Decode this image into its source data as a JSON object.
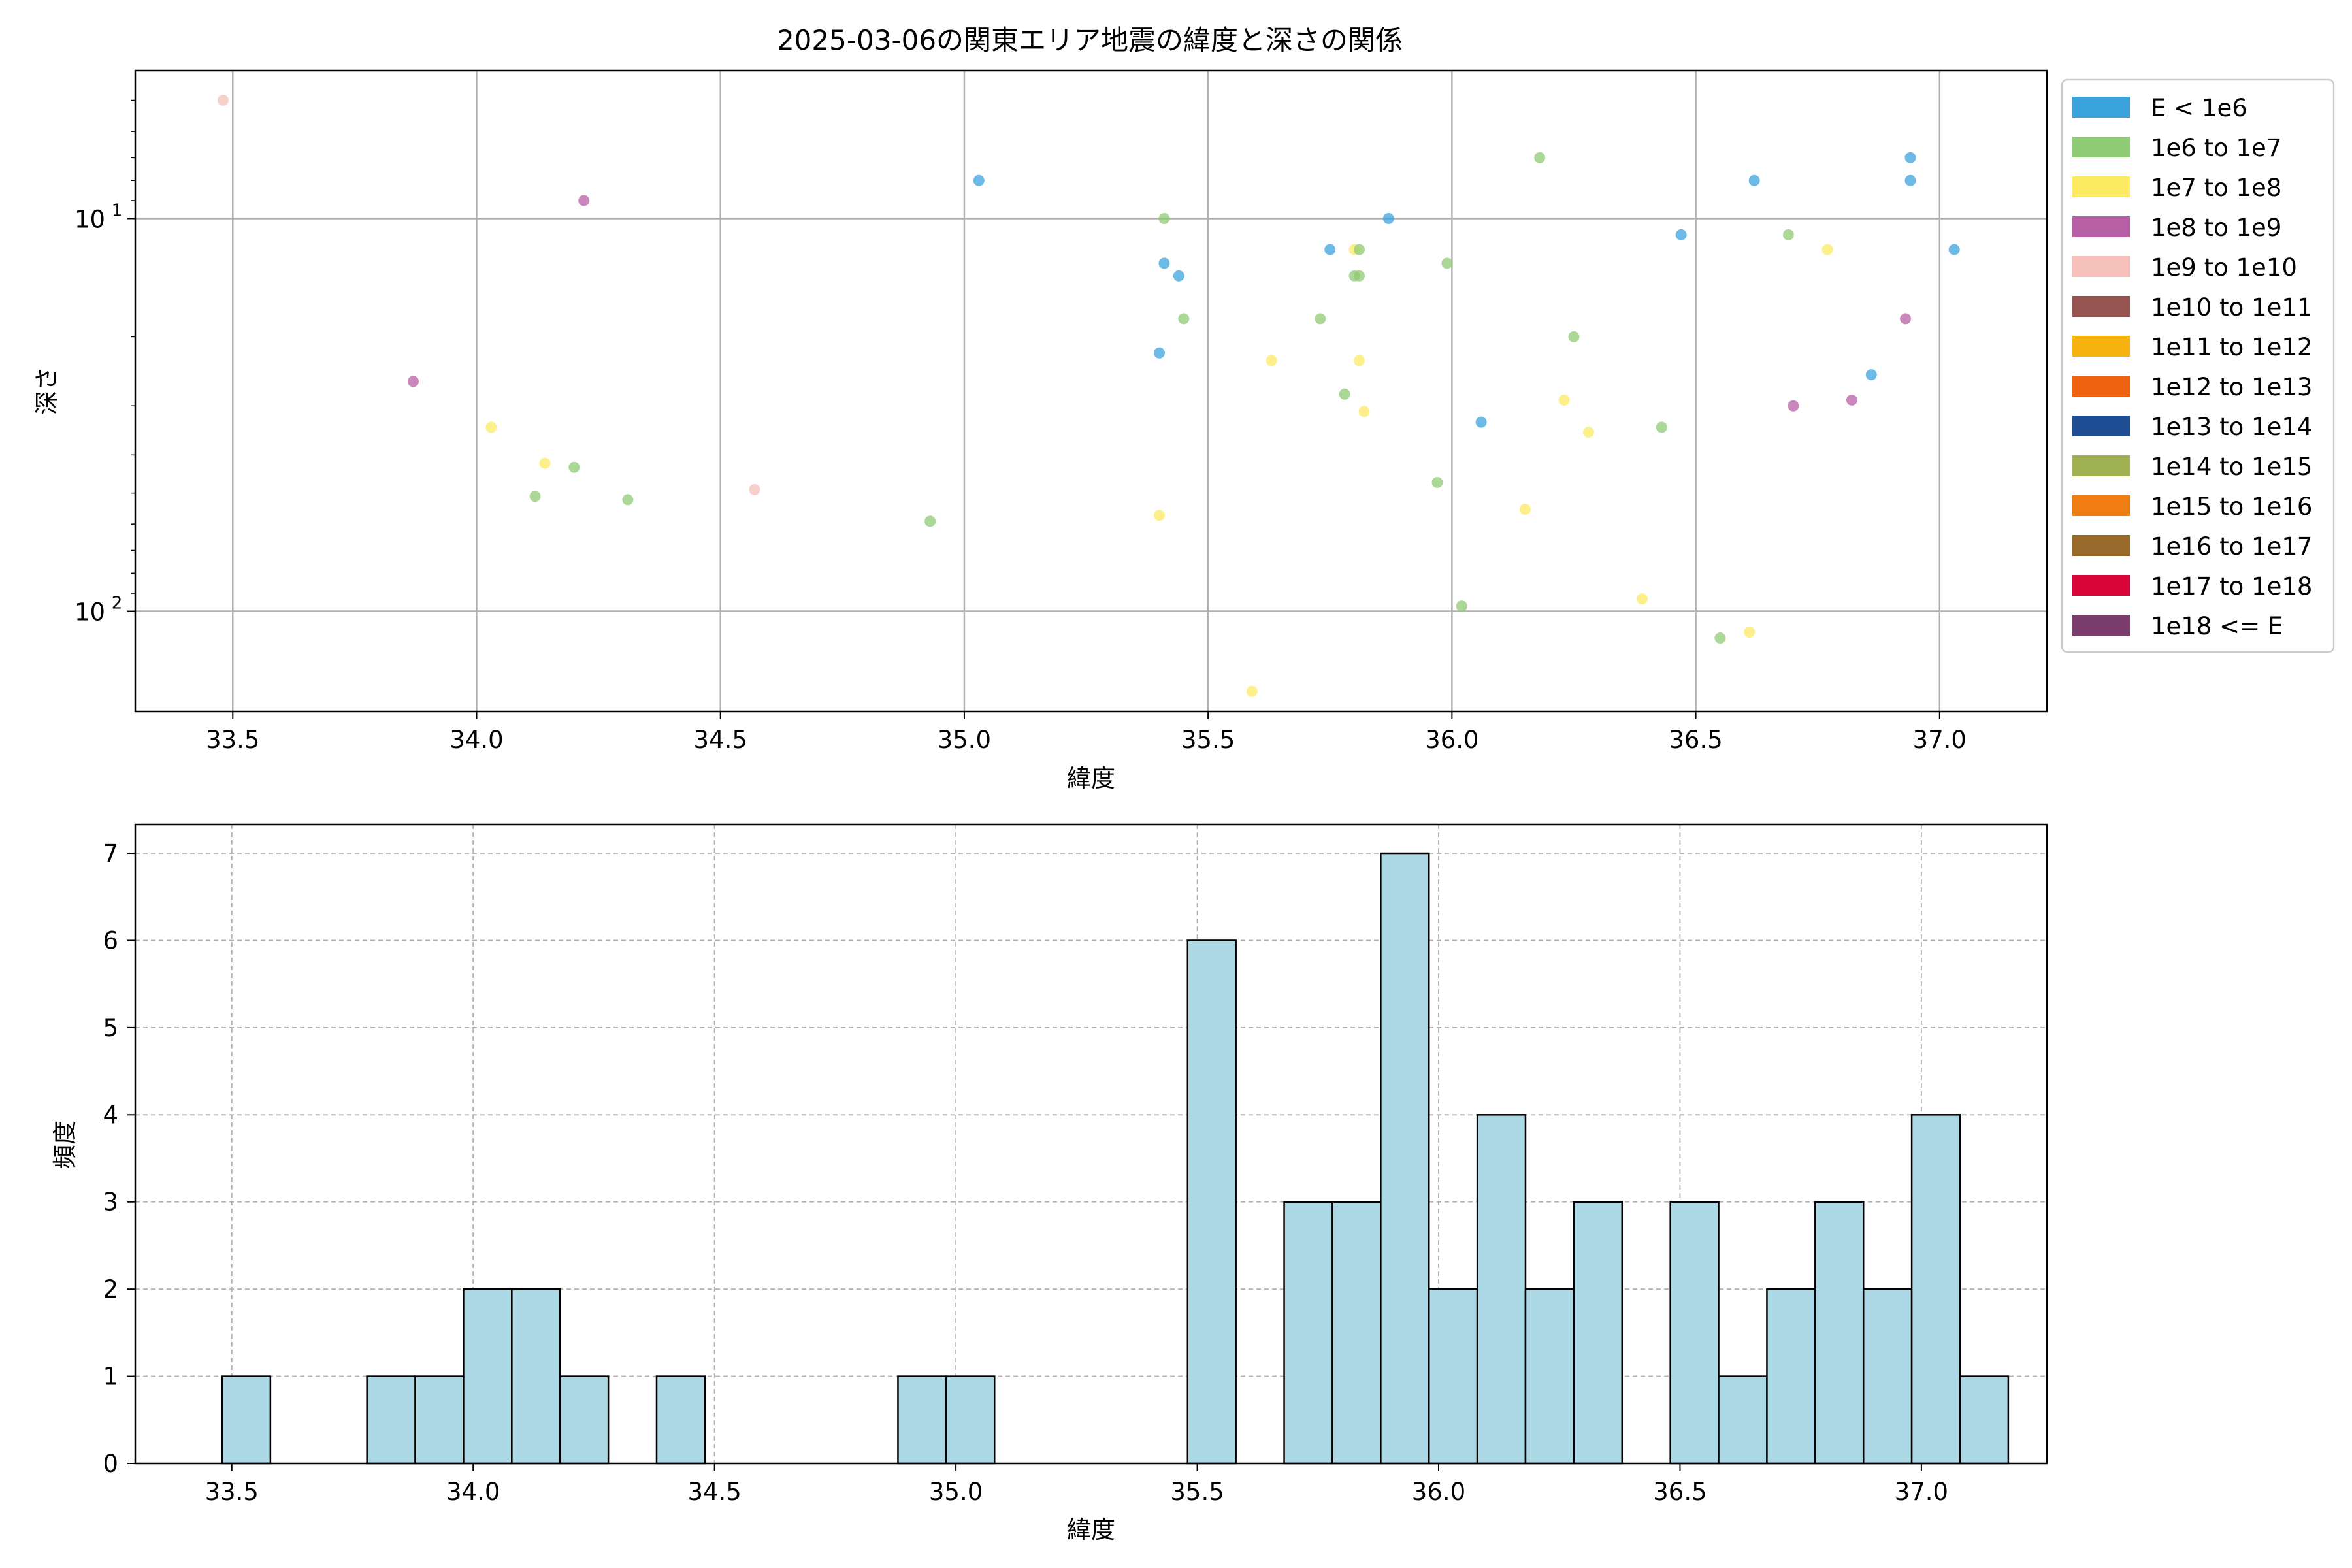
{
  "chart_data": [
    {
      "type": "scatter",
      "title": "2025-03-06の関東エリア地震の緯度と深さの関係",
      "xlabel": "緯度",
      "ylabel": "深さ",
      "xlim": [
        33.3,
        37.22
      ],
      "ylim": [
        180,
        4.2
      ],
      "y_scale": "log",
      "y_inverted": true,
      "grid": true,
      "legend_position": "outside-right",
      "xticks": [
        "33.5",
        "34.0",
        "34.5",
        "35.0",
        "35.5",
        "36.0",
        "36.5",
        "37.0"
      ],
      "yticks": [
        {
          "value": 10,
          "base": "10",
          "exp": "1"
        },
        {
          "value": 100,
          "base": "10",
          "exp": "2"
        }
      ],
      "legend": [
        {
          "label": "E < 1e6",
          "color": "#3ba3dc"
        },
        {
          "label": "1e6 to 1e7",
          "color": "#8fca74"
        },
        {
          "label": "1e7 to 1e8",
          "color": "#fcea62"
        },
        {
          "label": "1e8 to 1e9",
          "color": "#b75fa5"
        },
        {
          "label": "1e9 to 1e10",
          "color": "#f6c0ba"
        },
        {
          "label": "1e10 to 1e11",
          "color": "#955450"
        },
        {
          "label": "1e11 to 1e12",
          "color": "#f7b20f"
        },
        {
          "label": "1e12 to 1e13",
          "color": "#ee6210"
        },
        {
          "label": "1e13 to 1e14",
          "color": "#1e4d93"
        },
        {
          "label": "1e14 to 1e15",
          "color": "#9fb053"
        },
        {
          "label": "1e15 to 1e16",
          "color": "#f07d12"
        },
        {
          "label": "1e16 to 1e17",
          "color": "#986a2c"
        },
        {
          "label": "1e17 to 1e18",
          "color": "#da0639"
        },
        {
          "label": "1e18 <= E",
          "color": "#7a3c6c"
        }
      ],
      "points": [
        {
          "x": 33.48,
          "y": 5,
          "color": "#f6c0ba"
        },
        {
          "x": 34.22,
          "y": 9,
          "color": "#b75fa5"
        },
        {
          "x": 33.87,
          "y": 26,
          "color": "#b75fa5"
        },
        {
          "x": 34.03,
          "y": 34,
          "color": "#fcea62"
        },
        {
          "x": 34.14,
          "y": 42,
          "color": "#fcea62"
        },
        {
          "x": 34.2,
          "y": 43,
          "color": "#8fca74"
        },
        {
          "x": 34.12,
          "y": 51,
          "color": "#8fca74"
        },
        {
          "x": 34.31,
          "y": 52,
          "color": "#8fca74"
        },
        {
          "x": 34.57,
          "y": 49,
          "color": "#f6c0ba"
        },
        {
          "x": 34.93,
          "y": 59,
          "color": "#8fca74"
        },
        {
          "x": 35.03,
          "y": 8,
          "color": "#3ba3dc"
        },
        {
          "x": 35.41,
          "y": 10,
          "color": "#8fca74"
        },
        {
          "x": 35.41,
          "y": 13,
          "color": "#3ba3dc"
        },
        {
          "x": 35.44,
          "y": 14,
          "color": "#3ba3dc"
        },
        {
          "x": 35.45,
          "y": 18,
          "color": "#8fca74"
        },
        {
          "x": 35.4,
          "y": 22,
          "color": "#3ba3dc"
        },
        {
          "x": 35.4,
          "y": 57,
          "color": "#fcea62"
        },
        {
          "x": 35.59,
          "y": 160,
          "color": "#fcea62"
        },
        {
          "x": 35.63,
          "y": 23,
          "color": "#fcea62"
        },
        {
          "x": 35.73,
          "y": 18,
          "color": "#8fca74"
        },
        {
          "x": 35.75,
          "y": 12,
          "color": "#3ba3dc"
        },
        {
          "x": 35.78,
          "y": 28,
          "color": "#8fca74"
        },
        {
          "x": 35.8,
          "y": 12,
          "color": "#fcea62"
        },
        {
          "x": 35.81,
          "y": 12,
          "color": "#8fca74"
        },
        {
          "x": 35.8,
          "y": 14,
          "color": "#8fca74"
        },
        {
          "x": 35.81,
          "y": 14,
          "color": "#8fca74"
        },
        {
          "x": 35.81,
          "y": 23,
          "color": "#fcea62"
        },
        {
          "x": 35.82,
          "y": 31,
          "color": "#fcea62"
        },
        {
          "x": 35.87,
          "y": 10,
          "color": "#3ba3dc"
        },
        {
          "x": 35.97,
          "y": 47,
          "color": "#8fca74"
        },
        {
          "x": 35.99,
          "y": 13,
          "color": "#8fca74"
        },
        {
          "x": 36.02,
          "y": 97,
          "color": "#8fca74"
        },
        {
          "x": 36.06,
          "y": 33,
          "color": "#3ba3dc"
        },
        {
          "x": 36.15,
          "y": 55,
          "color": "#fcea62"
        },
        {
          "x": 36.18,
          "y": 7,
          "color": "#8fca74"
        },
        {
          "x": 36.23,
          "y": 29,
          "color": "#fcea62"
        },
        {
          "x": 36.25,
          "y": 20,
          "color": "#8fca74"
        },
        {
          "x": 36.28,
          "y": 35,
          "color": "#fcea62"
        },
        {
          "x": 36.39,
          "y": 93,
          "color": "#fcea62"
        },
        {
          "x": 36.43,
          "y": 34,
          "color": "#8fca74"
        },
        {
          "x": 36.47,
          "y": 11,
          "color": "#3ba3dc"
        },
        {
          "x": 36.55,
          "y": 117,
          "color": "#8fca74"
        },
        {
          "x": 36.61,
          "y": 113,
          "color": "#fcea62"
        },
        {
          "x": 36.62,
          "y": 8,
          "color": "#3ba3dc"
        },
        {
          "x": 36.69,
          "y": 11,
          "color": "#8fca74"
        },
        {
          "x": 36.7,
          "y": 30,
          "color": "#b75fa5"
        },
        {
          "x": 36.77,
          "y": 12,
          "color": "#fcea62"
        },
        {
          "x": 36.82,
          "y": 29,
          "color": "#b75fa5"
        },
        {
          "x": 36.86,
          "y": 25,
          "color": "#3ba3dc"
        },
        {
          "x": 36.93,
          "y": 18,
          "color": "#b75fa5"
        },
        {
          "x": 36.94,
          "y": 7,
          "color": "#3ba3dc"
        },
        {
          "x": 36.94,
          "y": 8,
          "color": "#3ba3dc"
        },
        {
          "x": 37.03,
          "y": 12,
          "color": "#3ba3dc"
        }
      ]
    },
    {
      "type": "bar",
      "xlabel": "緯度",
      "ylabel": "頻度",
      "xlim": [
        33.3,
        37.26
      ],
      "ylim": [
        0,
        7.33
      ],
      "grid": true,
      "bar_color": "#add8e6",
      "xticks": [
        "33.5",
        "34.0",
        "34.5",
        "35.0",
        "35.5",
        "36.0",
        "36.5",
        "37.0"
      ],
      "yticks": [
        "0",
        "1",
        "2",
        "3",
        "4",
        "5",
        "6",
        "7"
      ],
      "bin_start": 33.48,
      "bin_width": 0.1,
      "counts": [
        1,
        0,
        0,
        1,
        1,
        2,
        2,
        1,
        0,
        1,
        0,
        0,
        0,
        0,
        1,
        1,
        0,
        0,
        0,
        0,
        6,
        0,
        3,
        3,
        7,
        2,
        4,
        2,
        3,
        0,
        3,
        1,
        2,
        3,
        2,
        4,
        1
      ]
    }
  ]
}
